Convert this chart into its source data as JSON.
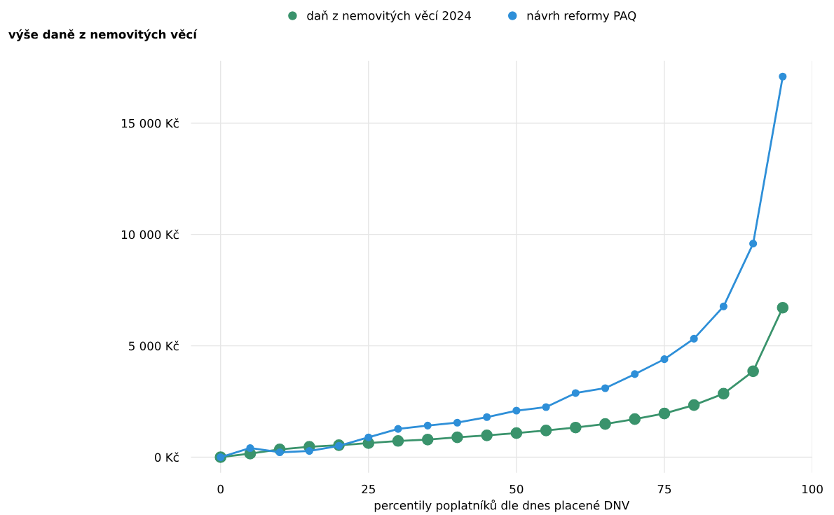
{
  "chart_data": {
    "type": "line",
    "ylabel": "výše daně z nemovitých věcí",
    "xlabel": "percentily poplatníků dle dnes placené DNV",
    "x": [
      0,
      5,
      10,
      15,
      20,
      25,
      30,
      35,
      40,
      45,
      50,
      55,
      60,
      65,
      70,
      75,
      80,
      85,
      90,
      95
    ],
    "series": [
      {
        "name": "daň z nemovitých věcí 2024",
        "color": "#3a936c",
        "values": [
          0,
          160,
          350,
          470,
          540,
          630,
          730,
          790,
          890,
          980,
          1080,
          1200,
          1330,
          1490,
          1710,
          1960,
          2340,
          2850,
          3860,
          6710
        ]
      },
      {
        "name": "návrh reformy PAQ",
        "color": "#2e8fd8",
        "values": [
          0,
          410,
          220,
          280,
          510,
          890,
          1270,
          1420,
          1550,
          1800,
          2090,
          2250,
          2880,
          3100,
          3730,
          4400,
          5320,
          6770,
          9590,
          17090
        ]
      }
    ],
    "xlim": [
      -5,
      100
    ],
    "xticks": [
      0,
      25,
      50,
      75,
      100
    ],
    "ylim": [
      -700,
      17800
    ],
    "yticks": [
      {
        "value": 0,
        "label": "0 Kč"
      },
      {
        "value": 5000,
        "label": "5 000 Kč"
      },
      {
        "value": 10000,
        "label": "10 000 Kč"
      },
      {
        "value": 15000,
        "label": "15 000 Kč"
      }
    ],
    "grid": true,
    "legend": "top",
    "marker": "circle",
    "line_style": "solid"
  }
}
